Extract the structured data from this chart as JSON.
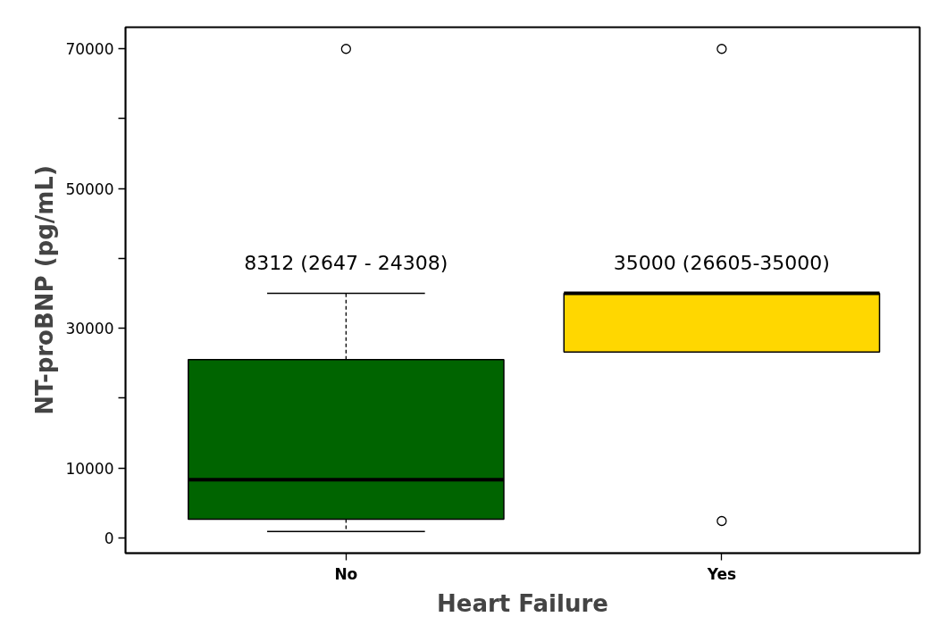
{
  "chart_data": {
    "type": "box",
    "xlabel": "Heart Failure",
    "ylabel": "NT-proBNP (pg/mL)",
    "categories": [
      "No",
      "Yes"
    ],
    "series": [
      {
        "colors": [
          "#006400",
          "#ffd700"
        ],
        "boxes": [
          {
            "low": 900,
            "q1": 2647,
            "median": 8312,
            "q3": 25500,
            "high": 35000,
            "outliers": [
              70000
            ]
          },
          {
            "low": 26605,
            "q1": 26605,
            "median": 35000,
            "q3": 35000,
            "high": 35000,
            "outliers": [
              70000,
              2400
            ]
          }
        ]
      }
    ],
    "ylim": [
      -2200,
      73100
    ],
    "yticks": [
      0,
      10000,
      {
        "value": 20000,
        "label": null
      },
      30000,
      {
        "value": 40000,
        "label": null
      },
      50000,
      {
        "value": 60000,
        "label": null
      },
      70000
    ],
    "annotations": [
      "8312 (2647 - 24308)",
      "35000 (26605-35000)"
    ],
    "grid": false
  }
}
